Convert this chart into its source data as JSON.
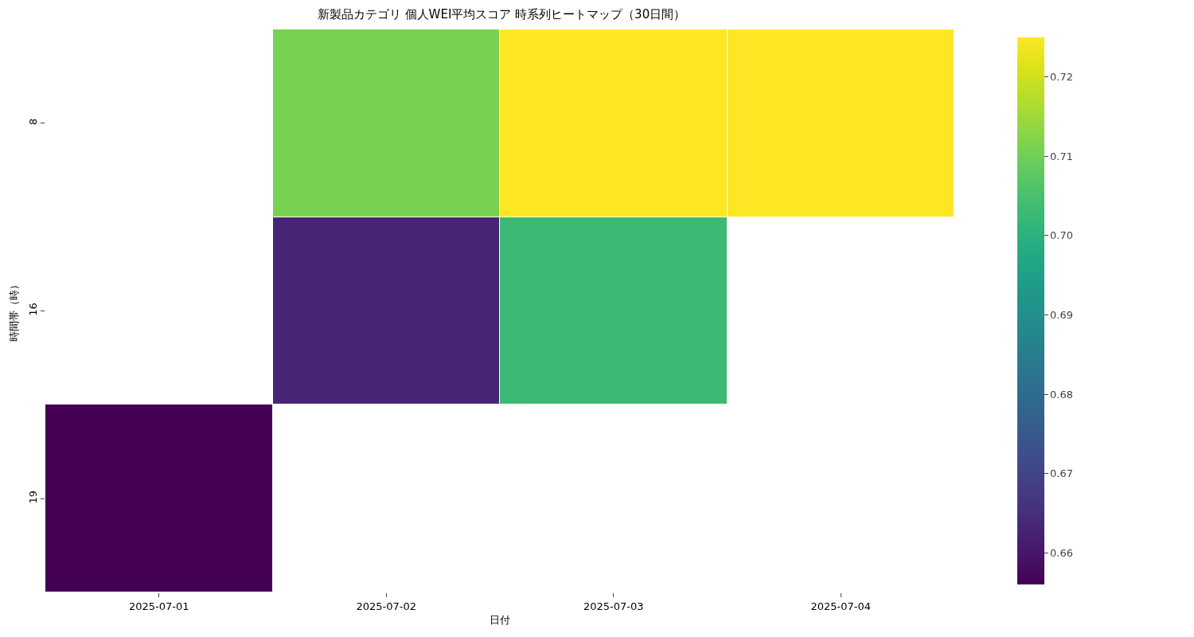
{
  "chart_data": {
    "type": "heatmap",
    "title": "新製品カテゴリ 個人WEI平均スコア 時系列ヒートマップ（30日間）",
    "xlabel": "日付",
    "ylabel": "時間帯（時）",
    "categories": [
      "2025-07-01",
      "2025-07-02",
      "2025-07-03",
      "2025-07-04"
    ],
    "y_categories": [
      "8",
      "16",
      "19"
    ],
    "cells": [
      [
        null,
        0.711,
        0.725,
        0.725
      ],
      [
        null,
        0.663,
        0.703,
        null
      ],
      [
        0.656,
        null,
        null,
        null
      ]
    ],
    "clim": [
      0.656,
      0.725
    ],
    "cticks": [
      0.66,
      0.67,
      0.68,
      0.69,
      {
        "value": 0.7,
        "label": "0.70"
      },
      0.71,
      0.72
    ]
  }
}
